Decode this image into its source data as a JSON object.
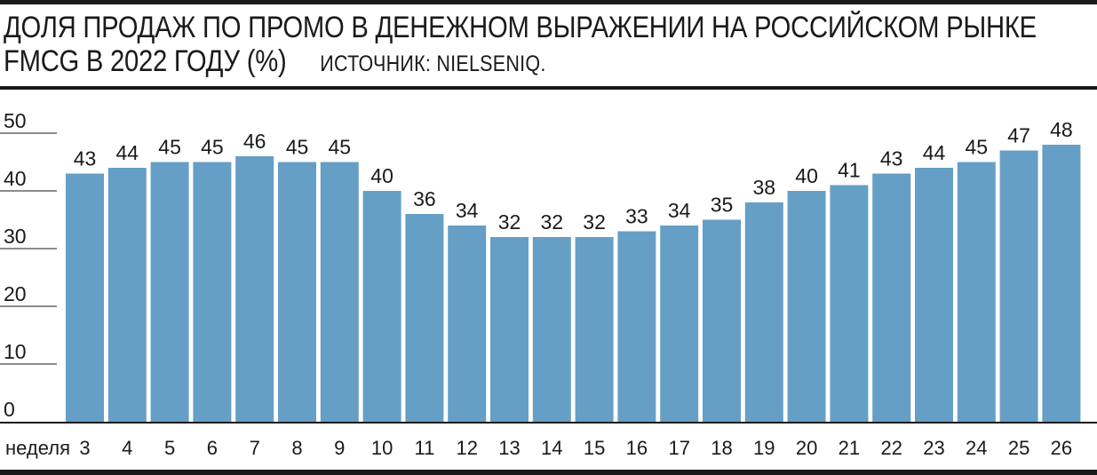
{
  "header": {
    "title_line1": "ДОЛЯ ПРОДАЖ ПО ПРОМО В ДЕНЕЖНОМ ВЫРАЖЕНИИ НА РОССИЙСКОМ РЫНКЕ",
    "title_line2": "FMCG В 2022 ГОДУ (%)",
    "source": "ИСТОЧНИК: NIELSENIQ."
  },
  "chart_data": {
    "type": "bar",
    "xlabel": "неделя",
    "categories": [
      "3",
      "4",
      "5",
      "6",
      "7",
      "8",
      "9",
      "10",
      "11",
      "12",
      "13",
      "14",
      "15",
      "16",
      "17",
      "18",
      "19",
      "20",
      "21",
      "22",
      "23",
      "24",
      "25",
      "26"
    ],
    "values": [
      43,
      44,
      45,
      45,
      46,
      45,
      45,
      40,
      36,
      34,
      32,
      32,
      32,
      33,
      34,
      35,
      38,
      40,
      41,
      43,
      44,
      45,
      47,
      48
    ],
    "ylim": [
      0,
      50
    ],
    "yticks": [
      0,
      10,
      20,
      30,
      40,
      50
    ],
    "grid": false,
    "bar_color": "#659fc6"
  }
}
